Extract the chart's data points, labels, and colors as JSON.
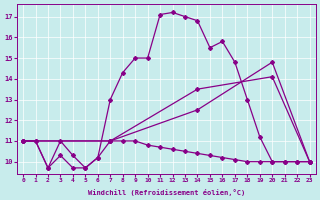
{
  "xlabel": "Windchill (Refroidissement éolien,°C)",
  "background_color": "#c8ecec",
  "line_color": "#880088",
  "xlim": [
    -0.5,
    23.5
  ],
  "ylim": [
    9.4,
    17.6
  ],
  "yticks": [
    10,
    11,
    12,
    13,
    14,
    15,
    16,
    17
  ],
  "xticks": [
    0,
    1,
    2,
    3,
    4,
    5,
    6,
    7,
    8,
    9,
    10,
    11,
    12,
    13,
    14,
    15,
    16,
    17,
    18,
    19,
    20,
    21,
    22,
    23
  ],
  "line_main_x": [
    0,
    1,
    2,
    3,
    4,
    5,
    6,
    7,
    8,
    9,
    10,
    11,
    12,
    13,
    14,
    15,
    16,
    17,
    18,
    19,
    20,
    21,
    22,
    23
  ],
  "line_main_y": [
    11.0,
    11.0,
    9.7,
    10.3,
    9.7,
    9.7,
    10.2,
    13.0,
    14.3,
    15.0,
    15.0,
    17.1,
    17.2,
    17.0,
    16.8,
    15.5,
    15.8,
    14.8,
    13.0,
    11.2,
    10.0,
    10.0,
    10.0,
    10.0
  ],
  "line_diag1_x": [
    0,
    7,
    14,
    20,
    23
  ],
  "line_diag1_y": [
    11.0,
    11.0,
    13.5,
    14.1,
    10.0
  ],
  "line_diag2_x": [
    0,
    7,
    14,
    20,
    23
  ],
  "line_diag2_y": [
    11.0,
    11.0,
    12.5,
    14.8,
    10.0
  ],
  "line_flat_x": [
    0,
    1,
    2,
    3,
    4,
    5,
    6,
    7,
    8,
    9,
    10,
    11,
    12,
    13,
    14,
    15,
    16,
    17,
    18,
    19,
    20,
    21,
    22,
    23
  ],
  "line_flat_y": [
    11.0,
    11.0,
    9.7,
    11.0,
    10.3,
    9.7,
    10.2,
    11.0,
    11.0,
    11.0,
    10.8,
    10.7,
    10.6,
    10.5,
    10.4,
    10.3,
    10.2,
    10.1,
    10.0,
    10.0,
    10.0,
    10.0,
    10.0,
    10.0
  ]
}
